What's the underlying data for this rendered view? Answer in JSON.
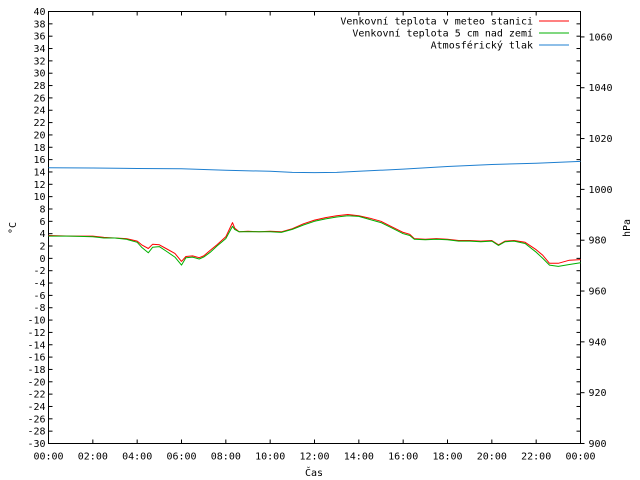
{
  "chart_data": {
    "type": "line",
    "xlabel": "Čas",
    "ylabel_left": "°C",
    "ylabel_right": "hPa",
    "ylim_left": [
      -30,
      40
    ],
    "ylim_right": [
      900,
      1070
    ],
    "xlim_hours": [
      0,
      24
    ],
    "x_ticks": [
      "00:00",
      "02:00",
      "04:00",
      "06:00",
      "08:00",
      "10:00",
      "12:00",
      "14:00",
      "16:00",
      "18:00",
      "20:00",
      "22:00",
      "00:00"
    ],
    "y_ticks_left": [
      40,
      38,
      36,
      34,
      32,
      30,
      28,
      26,
      24,
      22,
      20,
      18,
      16,
      14,
      12,
      10,
      8,
      6,
      4,
      2,
      0,
      -2,
      -4,
      -6,
      -8,
      -10,
      -12,
      -14,
      -16,
      -18,
      -20,
      -22,
      -24,
      -26,
      -28,
      -30
    ],
    "y_ticks_right": [
      1060,
      1040,
      1020,
      1000,
      980,
      960,
      940,
      920,
      900
    ],
    "grid": false,
    "legend_position": "top-right",
    "series": [
      {
        "name": "Venkovní teplota v meteo stanici",
        "color": "#ff0000",
        "axis": "left",
        "x": [
          0,
          1,
          2,
          2.5,
          3,
          3.5,
          4,
          4.2,
          4.5,
          4.7,
          5,
          5.3,
          5.7,
          6,
          6.2,
          6.5,
          6.8,
          7,
          7.3,
          7.6,
          8,
          8.3,
          8.4,
          8.6,
          9,
          9.5,
          10,
          10.5,
          11,
          11.5,
          12,
          12.5,
          13,
          13.5,
          14,
          14.5,
          15,
          15.5,
          16,
          16.3,
          16.5,
          17,
          17.5,
          18,
          18.5,
          19,
          19.5,
          20,
          20.3,
          20.6,
          21,
          21.5,
          22,
          22.3,
          22.6,
          23,
          23.5,
          24
        ],
        "y": [
          3.7,
          3.6,
          3.6,
          3.4,
          3.3,
          3.2,
          2.8,
          2.2,
          1.6,
          2.3,
          2.2,
          1.6,
          0.8,
          -0.5,
          0.3,
          0.4,
          0.1,
          0.4,
          1.3,
          2.2,
          3.5,
          5.8,
          4.9,
          4.3,
          4.4,
          4.3,
          4.4,
          4.3,
          4.8,
          5.6,
          6.2,
          6.6,
          6.9,
          7.1,
          6.9,
          6.5,
          6.0,
          5.1,
          4.2,
          3.9,
          3.2,
          3.1,
          3.2,
          3.1,
          2.9,
          2.9,
          2.8,
          2.9,
          2.2,
          2.8,
          2.9,
          2.6,
          1.4,
          0.5,
          -0.8,
          -0.8,
          -0.3,
          -0.2
        ]
      },
      {
        "name": "Venkovní teplota 5 cm nad zemí",
        "color": "#00b000",
        "axis": "left",
        "x": [
          0,
          1,
          2,
          2.5,
          3,
          3.5,
          4,
          4.2,
          4.5,
          4.7,
          5,
          5.3,
          5.7,
          6,
          6.2,
          6.5,
          6.8,
          7,
          7.3,
          7.6,
          8,
          8.3,
          8.4,
          8.6,
          9,
          9.5,
          10,
          10.5,
          11,
          11.5,
          12,
          12.5,
          13,
          13.5,
          14,
          14.5,
          15,
          15.5,
          16,
          16.3,
          16.5,
          17,
          17.5,
          18,
          18.5,
          19,
          19.5,
          20,
          20.3,
          20.6,
          21,
          21.5,
          22,
          22.3,
          22.6,
          23,
          23.5,
          24
        ],
        "y": [
          3.6,
          3.6,
          3.5,
          3.3,
          3.3,
          3.1,
          2.6,
          1.8,
          0.9,
          1.8,
          1.9,
          1.2,
          0.2,
          -1.1,
          0.1,
          0.2,
          -0.1,
          0.2,
          1.0,
          2.0,
          3.2,
          5.2,
          4.7,
          4.3,
          4.3,
          4.3,
          4.3,
          4.2,
          4.7,
          5.4,
          6.0,
          6.4,
          6.7,
          6.9,
          6.8,
          6.3,
          5.8,
          4.9,
          4.0,
          3.7,
          3.1,
          3.0,
          3.1,
          3.0,
          2.8,
          2.8,
          2.7,
          2.8,
          2.1,
          2.7,
          2.8,
          2.4,
          1.0,
          0.0,
          -1.1,
          -1.3,
          -1.0,
          -0.7
        ]
      },
      {
        "name": "Atmosférický tlak",
        "color": "#1e7fd0",
        "axis": "right",
        "x": [
          0,
          2,
          4,
          6,
          8,
          10,
          11,
          12,
          13,
          14,
          16,
          18,
          20,
          22,
          24
        ],
        "y": [
          1008.5,
          1008.4,
          1008.2,
          1008.1,
          1007.5,
          1007.1,
          1006.7,
          1006.6,
          1006.7,
          1007.1,
          1008.0,
          1009.0,
          1009.8,
          1010.3,
          1011.0
        ]
      }
    ]
  }
}
